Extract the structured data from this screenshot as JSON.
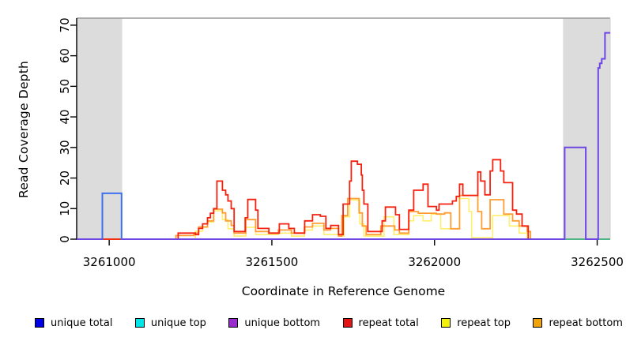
{
  "chart_data": {
    "type": "line",
    "subtype": "step-coverage",
    "title": "",
    "xlabel": "Coordinate in Reference Genome",
    "ylabel": "Read Coverage Depth",
    "xlim": [
      3260900,
      3262540
    ],
    "ylim": [
      0,
      72.3
    ],
    "x_ticks": [
      3261000,
      3261500,
      3262000,
      3262500
    ],
    "y_ticks": [
      0,
      10,
      20,
      30,
      40,
      50,
      60,
      70
    ],
    "grid": false,
    "legend_position": "bottom",
    "highlight_regions": [
      {
        "name": "left-flank",
        "x0": 3260900,
        "x1": 3261040,
        "color": "#dcdcdc"
      },
      {
        "name": "right-flank",
        "x0": 3262395,
        "x1": 3262540,
        "color": "#dcdcdc"
      }
    ],
    "series": [
      {
        "name": "repeat top",
        "color": "#ffef6b",
        "width": 1.6,
        "segments": [
          [
            [
              3260900,
              0
            ],
            [
              3261265,
              2.6
            ],
            [
              3261287,
              3.9
            ],
            [
              3261302,
              5.6
            ],
            [
              3261321,
              9.3
            ],
            [
              3261348,
              6.4
            ],
            [
              3261365,
              3.4
            ],
            [
              3261384,
              1
            ],
            [
              3261420,
              3.9
            ],
            [
              3261450,
              1.5
            ],
            [
              3261520,
              2
            ],
            [
              3261560,
              1
            ],
            [
              3261600,
              3
            ],
            [
              3261625,
              4.3
            ],
            [
              3261660,
              1.5
            ],
            [
              3261705,
              1
            ],
            [
              3261722,
              7.3
            ],
            [
              3261739,
              12.8
            ],
            [
              3261770,
              5
            ],
            [
              3261783,
              1
            ],
            [
              3261845,
              7.3
            ],
            [
              3261875,
              1.5
            ],
            [
              3261921,
              6
            ],
            [
              3261936,
              7.7
            ],
            [
              3261965,
              6
            ],
            [
              3261990,
              8.2
            ],
            [
              3262019,
              3.4
            ],
            [
              3262077,
              13.3
            ],
            [
              3262106,
              9
            ],
            [
              3262114,
              0.5
            ],
            [
              3262179,
              7.7
            ],
            [
              3262230,
              4.3
            ],
            [
              3262260,
              2
            ],
            [
              3262285,
              0
            ],
            [
              3262540,
              0
            ]
          ]
        ]
      },
      {
        "name": "repeat bottom",
        "color": "#ff9d33",
        "width": 1.8,
        "segments": [
          [
            [
              3260900,
              0
            ],
            [
              3261205,
              1.2
            ],
            [
              3261260,
              2
            ],
            [
              3261275,
              4
            ],
            [
              3261302,
              6
            ],
            [
              3261321,
              9.8
            ],
            [
              3261348,
              8.6
            ],
            [
              3261358,
              6
            ],
            [
              3261375,
              4.5
            ],
            [
              3261384,
              2
            ],
            [
              3261420,
              6.4
            ],
            [
              3261450,
              2.5
            ],
            [
              3261490,
              2
            ],
            [
              3261520,
              3
            ],
            [
              3261560,
              2
            ],
            [
              3261600,
              4
            ],
            [
              3261625,
              5.2
            ],
            [
              3261660,
              3
            ],
            [
              3261680,
              3.5
            ],
            [
              3261705,
              1
            ],
            [
              3261715,
              7.7
            ],
            [
              3261733,
              13.3
            ],
            [
              3261768,
              8.6
            ],
            [
              3261778,
              4.3
            ],
            [
              3261790,
              1.5
            ],
            [
              3261835,
              4.3
            ],
            [
              3261878,
              3
            ],
            [
              3261892,
              2
            ],
            [
              3261921,
              9
            ],
            [
              3261950,
              8.5
            ],
            [
              3262006,
              8.2
            ],
            [
              3262031,
              8.6
            ],
            [
              3262050,
              3.4
            ],
            [
              3262077,
              14.3
            ],
            [
              3262133,
              9
            ],
            [
              3262145,
              3.4
            ],
            [
              3262171,
              12.9
            ],
            [
              3262213,
              8.2
            ],
            [
              3262240,
              6
            ],
            [
              3262260,
              4.3
            ],
            [
              3262285,
              2.5
            ],
            [
              3262295,
              0
            ],
            [
              3262540,
              0
            ]
          ]
        ]
      },
      {
        "name": "repeat total",
        "color": "#f5200e",
        "width": 1.8,
        "segments": [
          [
            [
              3260900,
              0
            ],
            [
              3261212,
              2
            ],
            [
              3261265,
              1.5
            ],
            [
              3261275,
              3.5
            ],
            [
              3261287,
              5
            ],
            [
              3261302,
              7
            ],
            [
              3261311,
              8.5
            ],
            [
              3261321,
              10
            ],
            [
              3261331,
              19
            ],
            [
              3261348,
              16
            ],
            [
              3261358,
              14.5
            ],
            [
              3261365,
              12.5
            ],
            [
              3261375,
              10
            ],
            [
              3261384,
              2.5
            ],
            [
              3261418,
              7
            ],
            [
              3261426,
              13
            ],
            [
              3261450,
              9.5
            ],
            [
              3261457,
              3.5
            ],
            [
              3261491,
              2
            ],
            [
              3261523,
              5
            ],
            [
              3261552,
              3.5
            ],
            [
              3261569,
              2
            ],
            [
              3261601,
              6
            ],
            [
              3261625,
              8
            ],
            [
              3261649,
              7.5
            ],
            [
              3261666,
              3.5
            ],
            [
              3261681,
              4.5
            ],
            [
              3261705,
              1.5
            ],
            [
              3261719,
              11.5
            ],
            [
              3261739,
              19
            ],
            [
              3261744,
              25.5
            ],
            [
              3261763,
              24.5
            ],
            [
              3261775,
              21
            ],
            [
              3261778,
              16
            ],
            [
              3261783,
              11.5
            ],
            [
              3261795,
              2.5
            ],
            [
              3261839,
              6
            ],
            [
              3261849,
              10.5
            ],
            [
              3261880,
              8
            ],
            [
              3261892,
              3.2
            ],
            [
              3261921,
              9.5
            ],
            [
              3261936,
              16
            ],
            [
              3261965,
              18
            ],
            [
              3261980,
              10.7
            ],
            [
              3262006,
              9.5
            ],
            [
              3262014,
              11.5
            ],
            [
              3262055,
              12.5
            ],
            [
              3262067,
              14
            ],
            [
              3262077,
              18
            ],
            [
              3262087,
              14.3
            ],
            [
              3262133,
              22
            ],
            [
              3262142,
              19
            ],
            [
              3262155,
              14.5
            ],
            [
              3262171,
              22.3
            ],
            [
              3262179,
              26
            ],
            [
              3262203,
              22.3
            ],
            [
              3262213,
              18.5
            ],
            [
              3262240,
              9.5
            ],
            [
              3262252,
              8.2
            ],
            [
              3262269,
              4.3
            ],
            [
              3262288,
              0
            ],
            [
              3262540,
              0
            ]
          ]
        ]
      },
      {
        "name": "unique total",
        "color": "#3d70ee",
        "width": 2,
        "segments": [
          [
            [
              3260900,
              0
            ],
            [
              3260979,
              15
            ],
            [
              3261038,
              0
            ],
            [
              3262540,
              0
            ]
          ]
        ]
      },
      {
        "name": "unique top",
        "color": "#57cb63",
        "width": 1.4,
        "segments": [
          [
            [
              3262395,
              0
            ],
            [
              3262540,
              0
            ]
          ]
        ]
      },
      {
        "name": "unique bottom",
        "color": "#6e46e4",
        "width": 2,
        "segments": [
          [
            [
              3260900,
              0
            ],
            [
              3260978,
              0
            ]
          ],
          [
            [
              3261040,
              0
            ],
            [
              3262400,
              30
            ],
            [
              3262465,
              0
            ],
            [
              3262503,
              56
            ],
            [
              3262508,
              57.5
            ],
            [
              3262514,
              59
            ],
            [
              3262524,
              67.5
            ],
            [
              3262540,
              67.5
            ]
          ]
        ]
      }
    ]
  },
  "legend": {
    "items": [
      {
        "label": "unique total",
        "color": "#0000e6"
      },
      {
        "label": "unique top",
        "color": "#00e5e5"
      },
      {
        "label": "unique bottom",
        "color": "#992ccc"
      },
      {
        "label": "repeat total",
        "color": "#e51414"
      },
      {
        "label": "repeat top",
        "color": "#f2f20a"
      },
      {
        "label": "repeat bottom",
        "color": "#f0a40a"
      }
    ]
  },
  "axis_colors": {
    "box_top": "#999999",
    "box_right": "#cfcfcf",
    "axis": "#000000"
  }
}
